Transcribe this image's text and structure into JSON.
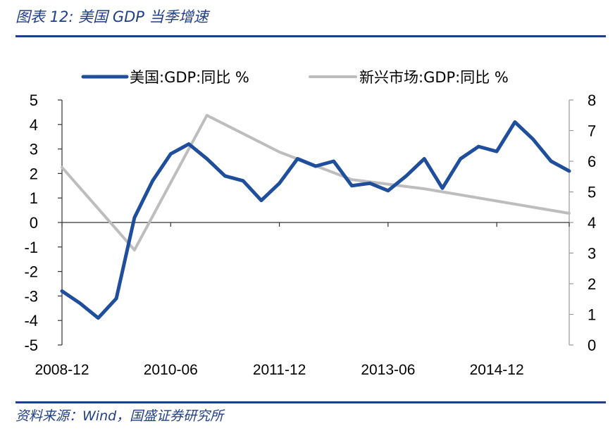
{
  "header": {
    "title": "图表 12:  美国 GDP 当季增速"
  },
  "footer": {
    "source": "资料来源：Wind，国盛证券研究所"
  },
  "chart_data": {
    "type": "line",
    "x": [
      "2008-12",
      "2009-03",
      "2009-06",
      "2009-09",
      "2009-12",
      "2010-03",
      "2010-06",
      "2010-09",
      "2010-12",
      "2011-03",
      "2011-06",
      "2011-09",
      "2011-12",
      "2012-03",
      "2012-06",
      "2012-09",
      "2012-12",
      "2013-03",
      "2013-06",
      "2013-09",
      "2013-12",
      "2014-03",
      "2014-06",
      "2014-09",
      "2014-12",
      "2015-03",
      "2015-06",
      "2015-09",
      "2015-12"
    ],
    "x_tick_labels": [
      "2008-12",
      "2010-06",
      "2011-12",
      "2013-06",
      "2014-12"
    ],
    "series": [
      {
        "name": "美国:GDP:同比 %",
        "axis": "left",
        "color": "#1f4e9c",
        "values": [
          -2.8,
          -3.3,
          -3.9,
          -3.1,
          0.2,
          1.7,
          2.8,
          3.2,
          2.6,
          1.9,
          1.7,
          0.9,
          1.6,
          2.6,
          2.3,
          2.5,
          1.5,
          1.6,
          1.3,
          1.9,
          2.6,
          1.4,
          2.6,
          3.1,
          2.9,
          4.1,
          3.4,
          2.5,
          2.1
        ]
      },
      {
        "name": "新兴市场:GDP:同比 %",
        "axis": "right",
        "color": "#bdbdbd",
        "x": [
          "2008-12",
          "2009-12",
          "2010-12",
          "2011-12",
          "2012-12",
          "2013-12",
          "2014-12",
          "2015-12"
        ],
        "values": [
          5.8,
          3.1,
          7.5,
          6.3,
          5.4,
          5.1,
          4.7,
          4.3
        ]
      }
    ],
    "y_left": {
      "lim": [
        -5,
        5
      ],
      "ticks": [
        5,
        4,
        3,
        2,
        1,
        0,
        -1,
        -2,
        -3,
        -4,
        -5
      ]
    },
    "y_right": {
      "lim": [
        0,
        8
      ],
      "ticks": [
        8,
        7,
        6,
        5,
        4,
        3,
        2,
        1,
        0
      ]
    },
    "legend_position": "top",
    "grid": false
  }
}
